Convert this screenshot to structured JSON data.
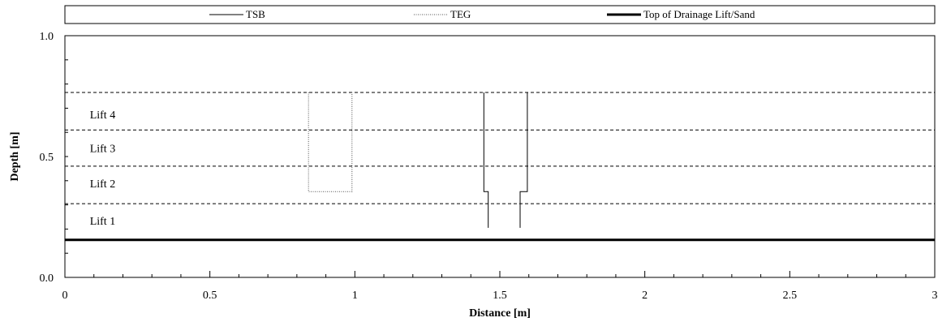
{
  "chart_data": {
    "type": "line",
    "title": "",
    "xlabel": "Distance [m]",
    "ylabel": "Depth [m]",
    "xlim": [
      0,
      3
    ],
    "ylim": [
      0,
      1
    ],
    "x_ticks": [
      0,
      0.5,
      1,
      1.5,
      2,
      2.5,
      3
    ],
    "x_tick_labels": [
      "0",
      "0.5",
      "1",
      "1.5",
      "2",
      "2.5",
      "3"
    ],
    "y_ticks": [
      0,
      0.5,
      1
    ],
    "y_tick_labels": [
      "0.0",
      "0.5",
      "1.0"
    ],
    "grid": false,
    "legend_position": "top",
    "series": [
      {
        "name": "TSB",
        "style": "solid-thin",
        "color": "#000000",
        "paths": [
          {
            "x": [
              1.46,
              1.46,
              1.445,
              1.445
            ],
            "y": [
              0.205,
              0.355,
              0.355,
              0.765
            ]
          },
          {
            "x": [
              1.57,
              1.57,
              1.595,
              1.595
            ],
            "y": [
              0.205,
              0.355,
              0.355,
              0.765
            ]
          }
        ]
      },
      {
        "name": "TEG",
        "style": "dotted",
        "color": "#555555",
        "paths": [
          {
            "x": [
              0.84,
              0.84,
              0.99,
              0.99
            ],
            "y": [
              0.765,
              0.355,
              0.355,
              0.765
            ]
          }
        ]
      },
      {
        "name": "Top of Drainage Lift/Sand",
        "style": "solid-thick",
        "color": "#000000",
        "paths": [
          {
            "x": [
              0,
              3
            ],
            "y": [
              0.155,
              0.155
            ]
          }
        ]
      }
    ],
    "lift_boundaries": [
      0.305,
      0.46,
      0.61,
      0.765
    ],
    "annotations": [
      {
        "text": "Lift 4",
        "x": 0.13,
        "y": 0.675
      },
      {
        "text": "Lift 3",
        "x": 0.13,
        "y": 0.535
      },
      {
        "text": "Lift 2",
        "x": 0.13,
        "y": 0.39
      },
      {
        "text": "Lift 1",
        "x": 0.13,
        "y": 0.235
      }
    ]
  }
}
